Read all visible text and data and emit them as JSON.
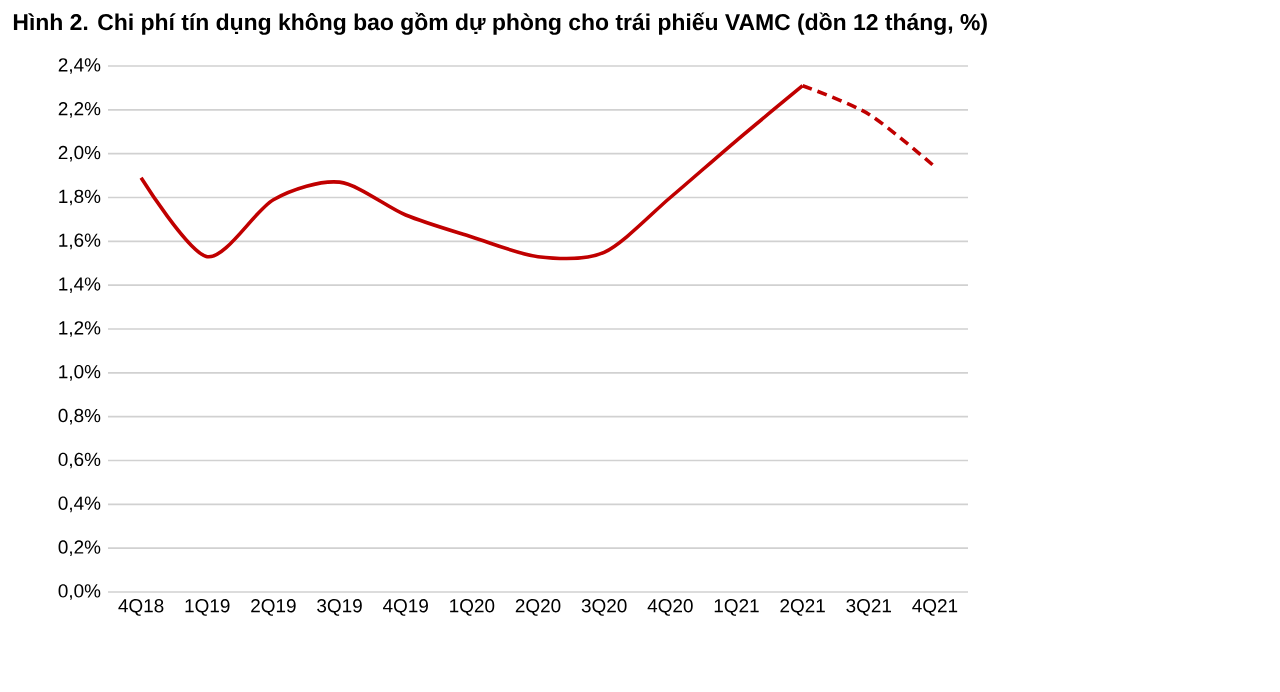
{
  "chart_data": {
    "type": "line",
    "title": "Hình 2. Chi phí tín dụng không bao gồm dự phòng cho trái phiếu VAMC (dồn 12 tháng, %)",
    "categories": [
      "4Q18",
      "1Q19",
      "2Q19",
      "3Q19",
      "4Q19",
      "1Q20",
      "2Q20",
      "3Q20",
      "4Q20",
      "1Q21",
      "2Q21",
      "3Q21",
      "4Q21"
    ],
    "series": [
      {
        "color": "#c00000",
        "line_style": "solid",
        "values": [
          1.89,
          1.53,
          1.79,
          1.87,
          1.72,
          1.62,
          1.53,
          1.55,
          1.8,
          2.06,
          2.31,
          null,
          null
        ]
      },
      {
        "color": "#c00000",
        "line_style": "dashed",
        "values": [
          null,
          null,
          null,
          null,
          null,
          null,
          null,
          null,
          null,
          null,
          2.31,
          2.18,
          1.94
        ]
      }
    ],
    "ylim": [
      0,
      2.4
    ],
    "yticks": [
      {
        "value": 0,
        "label": "0,0%"
      },
      {
        "value": 0.2,
        "label": "0,2%"
      },
      {
        "value": 0.4,
        "label": "0,4%"
      },
      {
        "value": 0.6,
        "label": "0,6%"
      },
      {
        "value": 0.8,
        "label": "0,8%"
      },
      {
        "value": 1.0,
        "label": "1,0%"
      },
      {
        "value": 1.2,
        "label": "1,2%"
      },
      {
        "value": 1.4,
        "label": "1,4%"
      },
      {
        "value": 1.6,
        "label": "1,6%"
      },
      {
        "value": 1.8,
        "label": "1,8%"
      },
      {
        "value": 2.0,
        "label": "2,0%"
      },
      {
        "value": 2.2,
        "label": "2,2%"
      },
      {
        "value": 2.4,
        "label": "2,4%"
      }
    ],
    "grid": "y",
    "marker": "none"
  }
}
